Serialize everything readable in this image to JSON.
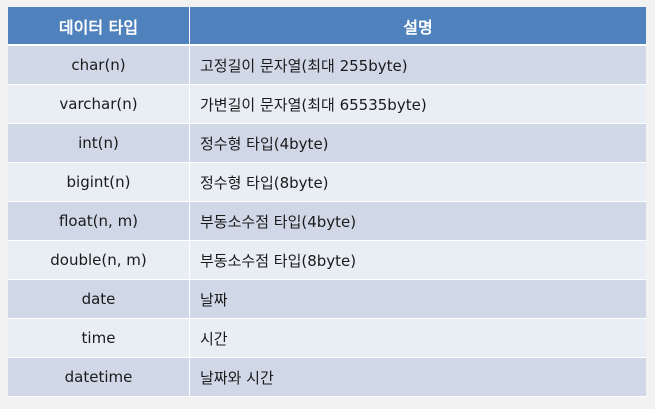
{
  "table": {
    "headers": [
      "데이터 타입",
      "설명"
    ],
    "rows": [
      {
        "type": "char(n)",
        "desc": "고정길이 문자열(최대 255byte)"
      },
      {
        "type": "varchar(n)",
        "desc": "가변길이 문자열(최대 65535byte)"
      },
      {
        "type": "int(n)",
        "desc": "정수형 타입(4byte)"
      },
      {
        "type": "bigint(n)",
        "desc": "정수형 타입(8byte)"
      },
      {
        "type": "float(n, m)",
        "desc": "부동소수점 타입(4byte)"
      },
      {
        "type": "double(n, m)",
        "desc": "부동소수점 타입(8byte)"
      },
      {
        "type": "date",
        "desc": "날짜"
      },
      {
        "type": "time",
        "desc": "시간"
      },
      {
        "type": "datetime",
        "desc": "날짜와 시간"
      }
    ]
  },
  "colors": {
    "header_bg": "#4f81bd",
    "row_odd_bg": "#d0d8e8",
    "row_even_bg": "#e9edf4"
  }
}
